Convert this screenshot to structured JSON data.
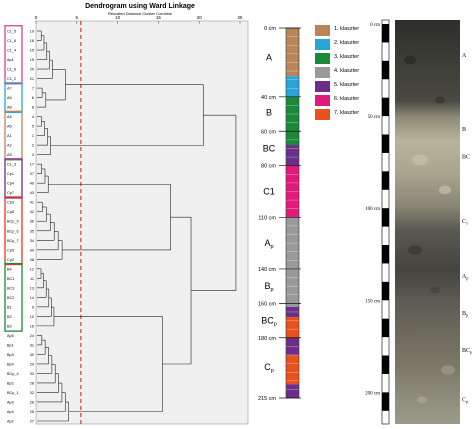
{
  "dendrogram": {
    "title": "Dendrogram using Ward Linkage",
    "subtitle": "Rescaled Distance Cluster Combine",
    "axis_ticks": [
      "0",
      "5",
      "10",
      "15",
      "20",
      "25"
    ],
    "groups": [
      {
        "color": "#d4478f",
        "labels": [
          "C1_5",
          "C1_6",
          "C1_4",
          "Ap1",
          "C1_6",
          "C1_2"
        ]
      },
      {
        "color": "#29a4d9",
        "labels": [
          "A7",
          "A6",
          "A8"
        ]
      },
      {
        "color": "#b8845a",
        "labels": [
          "A4",
          "A5",
          "A1",
          "A2",
          "A3"
        ]
      },
      {
        "color": "#6b2f8a",
        "labels": [
          "C1_3",
          "Cp1",
          "Cp4",
          "Cp7"
        ]
      },
      {
        "color": "#e8391e",
        "labels": [
          "Cp3",
          "Cp8",
          "BCp_5",
          "BCp_6",
          "BCp_7",
          "Cp5",
          "Cp2"
        ]
      },
      {
        "color": "#1a8a3a",
        "labels": [
          "B4",
          "BC1",
          "BC3",
          "BC2",
          "B1",
          "B2",
          "B3"
        ]
      },
      {
        "color": "",
        "labels": [
          "Ap5",
          "Bp1",
          "Bp3",
          "Bp4",
          "BCp_4",
          "Bp2",
          "BCp_1",
          "Ap3",
          "Ap4",
          "Ap2"
        ]
      }
    ],
    "row_numbers": [
      "19",
      "18",
      "15",
      "15",
      "20",
      "21",
      "7",
      "6",
      "8",
      "4",
      "5",
      "1",
      "2",
      "3",
      "17",
      "37",
      "40",
      "43",
      "41",
      "42",
      "36",
      "35",
      "34",
      "39",
      "38",
      "12",
      "11",
      "13",
      "14",
      "9",
      "10",
      "16",
      "24",
      "31",
      "30",
      "29",
      "33",
      "28",
      "32",
      "26",
      "25",
      "27"
    ]
  },
  "column": {
    "depth_labels": [
      "0 cm",
      "40 cm",
      "60 cm",
      "80 cm",
      "110 cm",
      "140 cm",
      "160 cm",
      "180 cm",
      "215 cm"
    ],
    "horizon_labels": [
      {
        "main": "A",
        "sub": ""
      },
      {
        "main": "B",
        "sub": ""
      },
      {
        "main": "BC",
        "sub": ""
      },
      {
        "main": "C1",
        "sub": ""
      },
      {
        "main": "A",
        "sub": "p"
      },
      {
        "main": "B",
        "sub": "p"
      },
      {
        "main": "BC",
        "sub": "p"
      },
      {
        "main": "C",
        "sub": "p"
      }
    ]
  },
  "legend": {
    "items": [
      {
        "label": "1. klaszter",
        "color": "#b8845a"
      },
      {
        "label": "2. klaszter",
        "color": "#29a4d9"
      },
      {
        "label": "3. klaszter",
        "color": "#1a8a3a"
      },
      {
        "label": "4. klaszter",
        "color": "#9a9a9a"
      },
      {
        "label": "5. klaszter",
        "color": "#6b2f8a"
      },
      {
        "label": "6. klaszter",
        "color": "#e0197a"
      },
      {
        "label": "7. klaszter",
        "color": "#e8501e"
      }
    ]
  },
  "photo": {
    "depth_labels": [
      "0 cm",
      "50 cm",
      "100 cm",
      "150 cm",
      "200 cm"
    ],
    "horizon_labels": [
      {
        "main": "A",
        "sub": ""
      },
      {
        "main": "B",
        "sub": ""
      },
      {
        "main": "BC",
        "sub": ""
      },
      {
        "main": "C",
        "sub": "1"
      },
      {
        "main": "A",
        "sub": "p"
      },
      {
        "main": "B",
        "sub": "p"
      },
      {
        "main": "BC",
        "sub": "p"
      },
      {
        "main": "C",
        "sub": "p"
      }
    ]
  }
}
